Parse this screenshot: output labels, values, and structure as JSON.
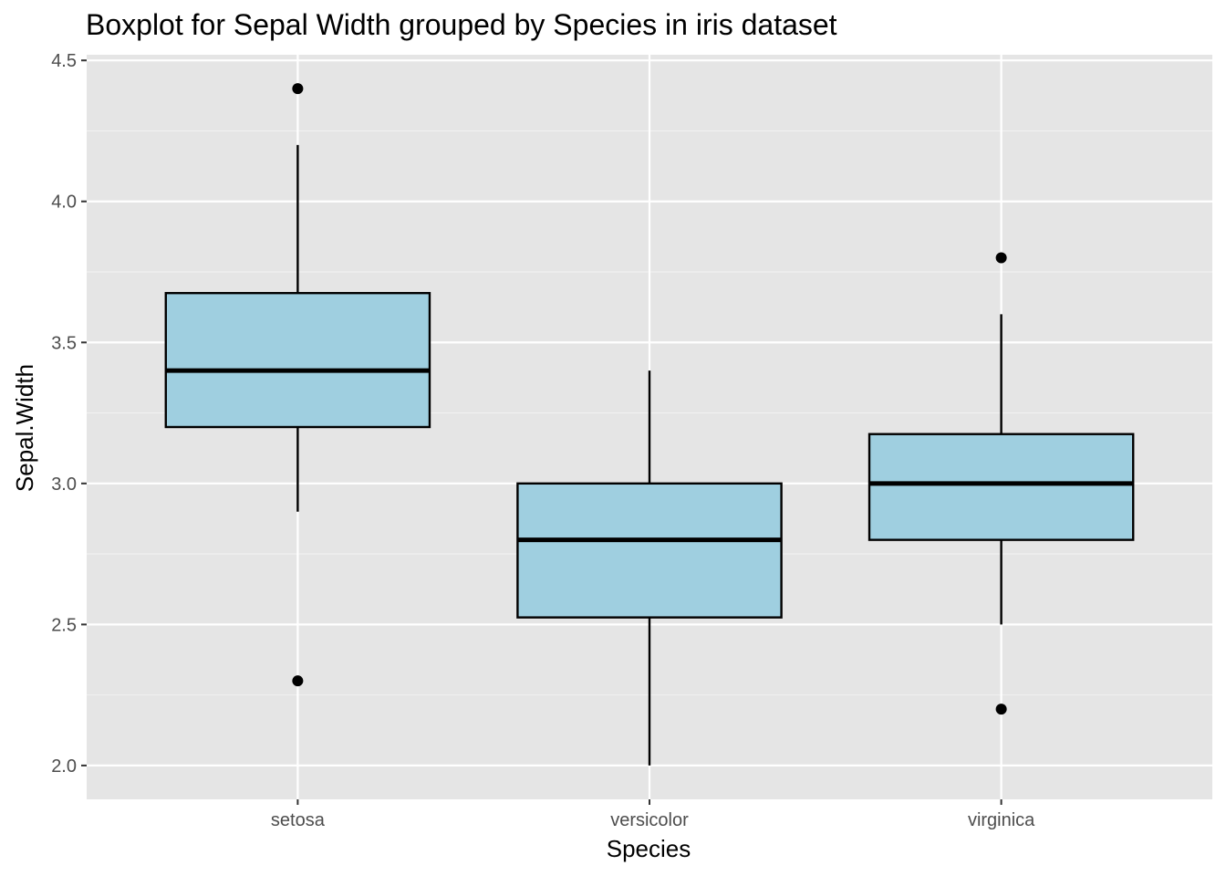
{
  "chart_data": {
    "type": "boxplot",
    "title": "Boxplot for Sepal Width grouped by Species in iris dataset",
    "xlabel": "Species",
    "ylabel": "Sepal.Width",
    "categories": [
      "setosa",
      "versicolor",
      "virginica"
    ],
    "ylim": [
      1.88,
      4.52
    ],
    "y_ticks": [
      2.0,
      2.5,
      3.0,
      3.5,
      4.0,
      4.5
    ],
    "y_tick_labels": [
      "2.0",
      "2.5",
      "3.0",
      "3.5",
      "4.0",
      "4.5"
    ],
    "grid": true,
    "legend": "none",
    "boxes": [
      {
        "category": "setosa",
        "lower_whisker": 2.9,
        "q1": 3.2,
        "median": 3.4,
        "q3": 3.675,
        "upper_whisker": 4.2,
        "outliers": [
          4.4,
          2.3
        ]
      },
      {
        "category": "versicolor",
        "lower_whisker": 2.0,
        "q1": 2.525,
        "median": 2.8,
        "q3": 3.0,
        "upper_whisker": 3.4,
        "outliers": []
      },
      {
        "category": "virginica",
        "lower_whisker": 2.5,
        "q1": 2.8,
        "median": 3.0,
        "q3": 3.175,
        "upper_whisker": 3.6,
        "outliers": [
          3.8,
          2.2
        ]
      }
    ],
    "colors": {
      "panel_background": "#e5e5e5",
      "grid_major": "#ffffff",
      "grid_minor": "#f2f2f2",
      "box_fill": "#9fcfe0",
      "box_stroke": "#000000",
      "point": "#000000",
      "tick_text": "#4d4d4d",
      "tick_mark": "#333333"
    }
  }
}
